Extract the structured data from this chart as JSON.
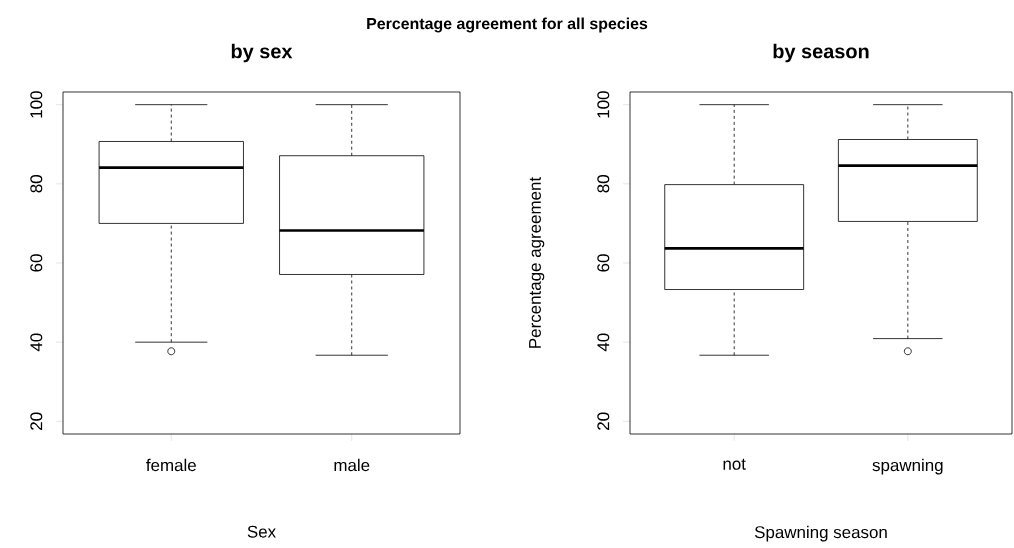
{
  "chart_data": [
    {
      "type": "box",
      "title": "by sex",
      "xlabel": "Sex",
      "categories": [
        "female",
        "male"
      ],
      "boxes": [
        {
          "low": 40,
          "q1": 70,
          "median": 84.1,
          "q3": 90.7,
          "high": 100,
          "outliers": [
            37.7
          ]
        },
        {
          "low": 36.7,
          "q1": 57.1,
          "median": 68.2,
          "q3": 87.1,
          "high": 100
        }
      ],
      "ylim": [
        16.8,
        103.2
      ],
      "yticks": [
        20,
        40,
        60,
        80,
        100
      ],
      "annotations": [
        "Percentage agreement for all species"
      ]
    },
    {
      "type": "box",
      "title": "by season",
      "xlabel": "Spawning season",
      "ylabel": "Percentage agreement",
      "categories": [
        "not",
        "spawning"
      ],
      "boxes": [
        {
          "low": 36.7,
          "q1": 53.3,
          "median": 63.7,
          "q3": 79.8,
          "high": 100
        },
        {
          "low": 40.9,
          "q1": 70.5,
          "median": 84.6,
          "q3": 91.2,
          "high": 100,
          "outliers": [
            37.7
          ]
        }
      ],
      "ylim": [
        16.8,
        103.2
      ],
      "yticks": [
        20,
        40,
        60,
        80,
        100
      ]
    }
  ]
}
